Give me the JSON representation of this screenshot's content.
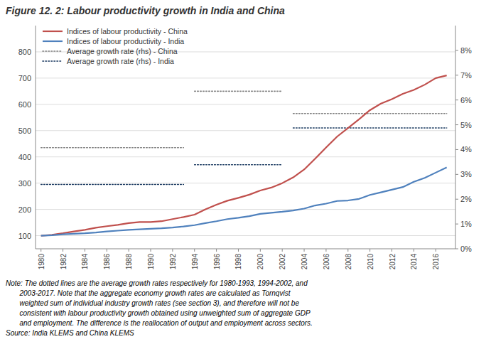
{
  "chart_data": {
    "type": "line",
    "title": "Figure 12. 2: Labour productivity growth in India and China",
    "x": [
      1980,
      1981,
      1982,
      1983,
      1984,
      1985,
      1986,
      1987,
      1988,
      1989,
      1990,
      1991,
      1992,
      1993,
      1994,
      1995,
      1996,
      1997,
      1998,
      1999,
      2000,
      2001,
      2002,
      2003,
      2004,
      2005,
      2006,
      2007,
      2008,
      2009,
      2010,
      2011,
      2012,
      2013,
      2014,
      2015,
      2016,
      2017
    ],
    "series": [
      {
        "name": "Indices of labour productivity - China",
        "color": "#C0504D",
        "line_style": "solid",
        "values": [
          100,
          103,
          109,
          116,
          122,
          130,
          136,
          141,
          148,
          152,
          152,
          155,
          163,
          171,
          180,
          200,
          218,
          233,
          244,
          256,
          272,
          283,
          300,
          322,
          352,
          393,
          436,
          477,
          510,
          543,
          578,
          603,
          620,
          640,
          655,
          675,
          700,
          710
        ]
      },
      {
        "name": "Indices of labour productivity - India",
        "color": "#4F81BD",
        "line_style": "solid",
        "values": [
          100,
          102,
          105,
          107,
          109,
          112,
          116,
          119,
          122,
          124,
          126,
          128,
          131,
          135,
          140,
          148,
          155,
          163,
          168,
          174,
          183,
          187,
          191,
          196,
          203,
          215,
          222,
          232,
          234,
          240,
          255,
          265,
          275,
          285,
          305,
          320,
          340,
          360
        ]
      },
      {
        "name": "Average growth rate (rhs) - China",
        "color": "#808080",
        "line_style": "dotted",
        "x": [
          1980,
          1993,
          null,
          1994,
          2002,
          null,
          2003,
          2017
        ],
        "values": [
          435,
          435,
          null,
          650,
          650,
          null,
          565,
          565
        ]
      },
      {
        "name": "Average growth rate (rhs) - India",
        "color": "#17375E",
        "line_style": "dotted",
        "x": [
          1980,
          1993,
          null,
          1994,
          2002,
          null,
          2003,
          2017
        ],
        "values": [
          295,
          295,
          null,
          370,
          370,
          null,
          510,
          510
        ]
      }
    ],
    "xlim": [
      1979.5,
      2017.8
    ],
    "xticks": [
      1980,
      1982,
      1984,
      1986,
      1988,
      1990,
      1992,
      1994,
      1996,
      1998,
      2000,
      2002,
      2004,
      2006,
      2008,
      2010,
      2012,
      2014,
      2016
    ],
    "ylim": [
      50,
      900
    ],
    "yticks": [
      100,
      200,
      300,
      400,
      500,
      600,
      700,
      800
    ],
    "y2lim": [
      0.0,
      0.09
    ],
    "y2ticks": [
      {
        "value": 0.0,
        "label": "0%"
      },
      {
        "value": 0.01,
        "label": "1%"
      },
      {
        "value": 0.02,
        "label": "2%"
      },
      {
        "value": 0.03,
        "label": "3%"
      },
      {
        "value": 0.04,
        "label": "4%"
      },
      {
        "value": 0.05,
        "label": "5%"
      },
      {
        "value": 0.06,
        "label": "6%"
      },
      {
        "value": 0.07,
        "label": "7%"
      },
      {
        "value": 0.08,
        "label": "8%"
      }
    ],
    "grid": true,
    "legend": "upper left",
    "notes": [
      "Note: The dotted lines are the average growth rates respectively for 1980-1993, 1994-2002, and",
      "       2003-2017. Note that the aggregate economy growth rates are calculated as Tornqvist",
      "       weighted sum of individual industry growth rates (see section 3), and therefore will not be",
      "       consistent with labour productivity growth obtained using unweighted sum of aggregate GDP",
      "       and employment. The difference is the reallocation of output and employment across sectors.",
      "Source: India KLEMS and China KLEMS"
    ]
  }
}
